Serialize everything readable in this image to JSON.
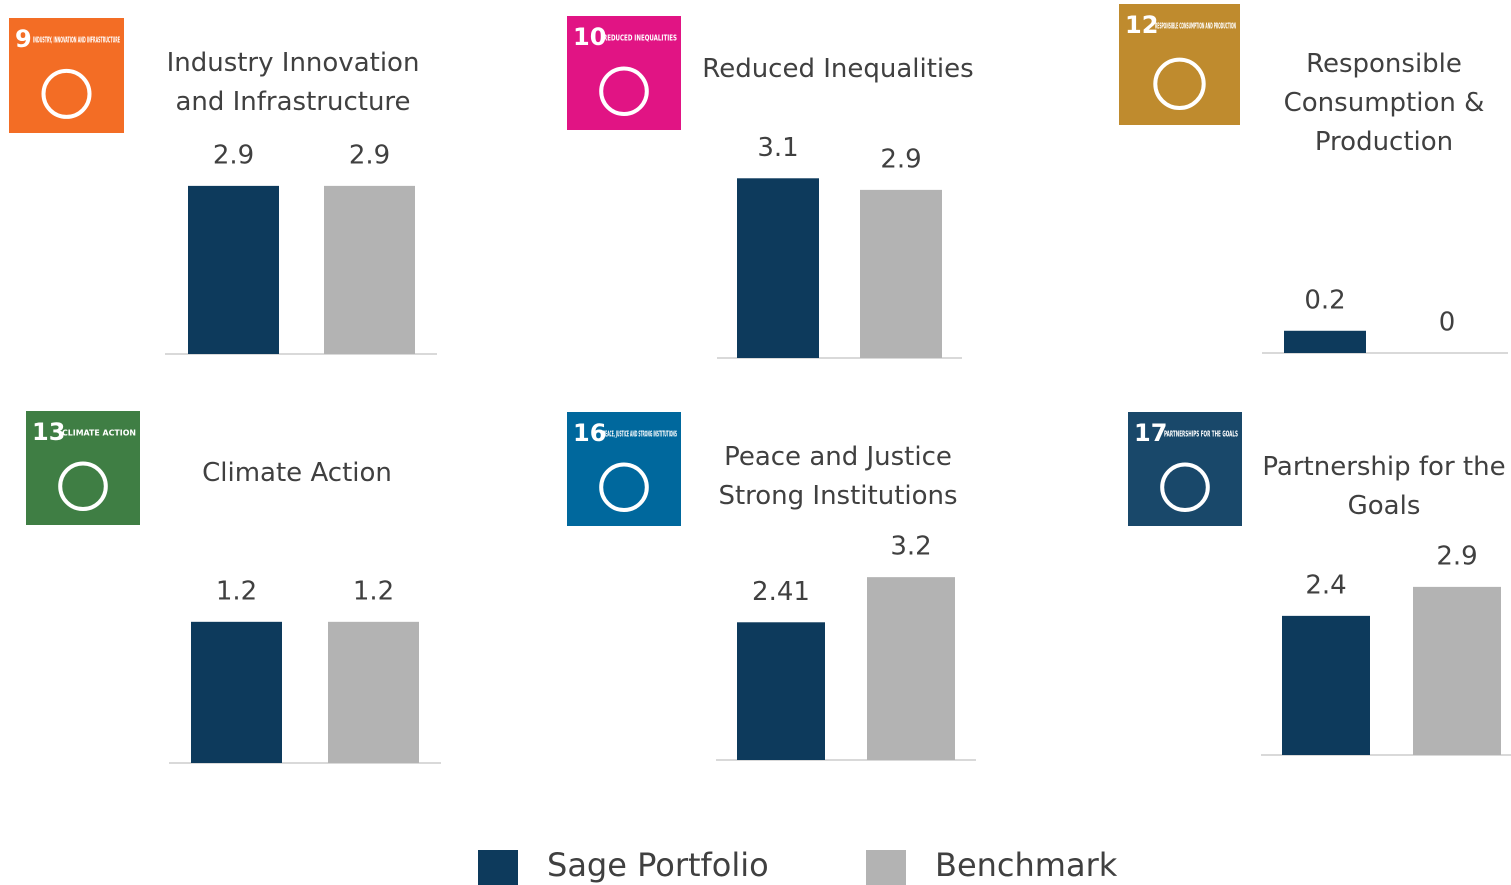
{
  "legend": {
    "series": [
      {
        "name": "Sage Portfolio",
        "color": "#0d3a5c"
      },
      {
        "name": "Benchmark",
        "color": "#b3b3b3"
      }
    ]
  },
  "chart_data": [
    {
      "type": "bar",
      "title": "Industry Innovation and Infrastructure",
      "icon": {
        "number": "9",
        "label": "INDUSTRY, INNOVATION AND INFRASTRUCTURE",
        "color": "#f36d25"
      },
      "categories": [
        null,
        null
      ],
      "values": [
        2.9,
        2.9
      ],
      "ylim": [
        0,
        3.45
      ]
    },
    {
      "type": "bar",
      "title": "Reduced Inequalities",
      "icon": {
        "number": "10",
        "label": "REDUCED INEQUALITIES",
        "color": "#e11484"
      },
      "categories": [
        null,
        null
      ],
      "values": [
        3.1,
        2.9
      ],
      "ylim": [
        0,
        3.45
      ]
    },
    {
      "type": "bar",
      "title": "Responsible Consumption & Production",
      "icon": {
        "number": "12",
        "label": "RESPONSIBLE CONSUMPTION AND PRODUCTION",
        "color": "#bf8b2e"
      },
      "categories": [
        null,
        null
      ],
      "values": [
        0.2,
        0
      ],
      "ylim": [
        0,
        1.8
      ]
    },
    {
      "type": "bar",
      "title": "Climate Action",
      "icon": {
        "number": "13",
        "label": "CLIMATE ACTION",
        "color": "#3f7e44"
      },
      "categories": [
        null,
        null
      ],
      "values": [
        1.2,
        1.2
      ],
      "ylim": [
        0,
        1.7
      ]
    },
    {
      "type": "bar",
      "title": "Peace and Justice Strong Institutions",
      "icon": {
        "number": "16",
        "label": "PEACE, JUSTICE AND STRONG INSTITUTIONS",
        "color": "#00689d"
      },
      "categories": [
        null,
        null
      ],
      "values": [
        2.41,
        3.2
      ],
      "ylim": [
        0,
        3.5
      ]
    },
    {
      "type": "bar",
      "title": "Partnership for the Goals",
      "icon": {
        "number": "17",
        "label": "PARTNERSHIPS FOR THE GOALS",
        "color": "#19486a"
      },
      "categories": [
        null,
        null
      ],
      "values": [
        2.4,
        2.9
      ],
      "ylim": [
        0,
        3.45
      ]
    }
  ]
}
